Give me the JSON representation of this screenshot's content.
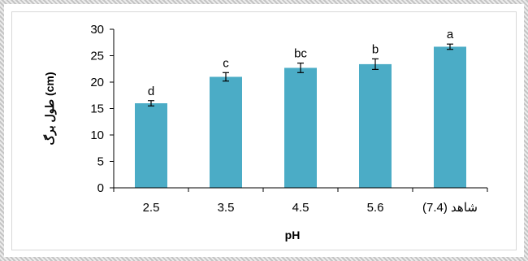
{
  "chart_data": {
    "type": "bar",
    "categories": [
      "2.5",
      "3.5",
      "4.5",
      "5.6",
      "شاهد (7.4)"
    ],
    "values": [
      16.0,
      21.0,
      22.7,
      23.4,
      26.7
    ],
    "errors": [
      0.5,
      0.8,
      0.9,
      1.0,
      0.5
    ],
    "significance_letters": [
      "d",
      "c",
      "bc",
      "b",
      "a"
    ],
    "xlabel": "pH",
    "ylabel": "طول برگ (cm)",
    "ylim": [
      0,
      30
    ],
    "yticks": [
      0,
      5,
      10,
      15,
      20,
      25,
      30
    ],
    "grid": false,
    "bar_color": "#4bacc6"
  }
}
